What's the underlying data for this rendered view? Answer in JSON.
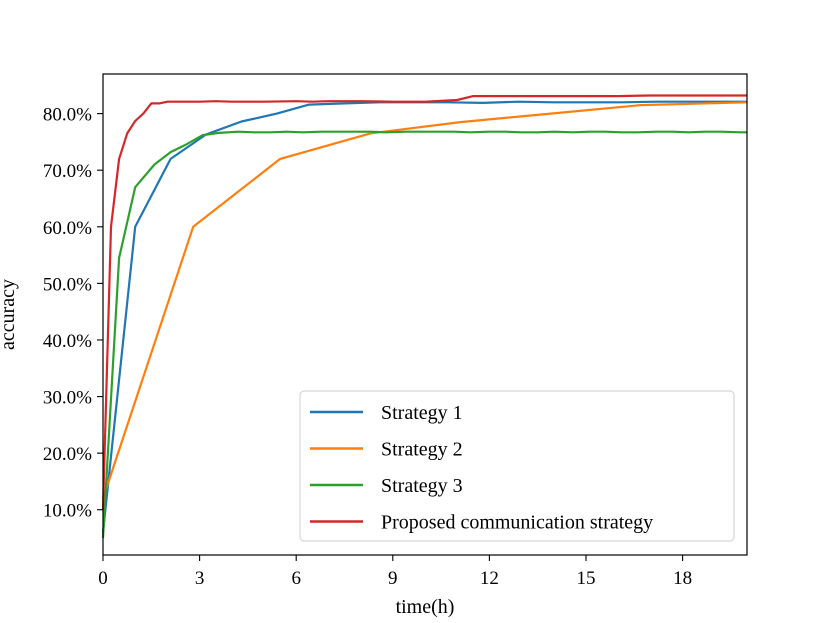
{
  "chart_data": {
    "type": "line",
    "title": "",
    "xlabel": "time(h)",
    "ylabel": "accuracy",
    "xlim": [
      0,
      20
    ],
    "ylim": [
      2,
      87
    ],
    "xticks": [
      0,
      3,
      6,
      9,
      12,
      15,
      18
    ],
    "xtick_labels": [
      "0",
      "3",
      "6",
      "9",
      "12",
      "15",
      "18"
    ],
    "yticks": [
      10,
      20,
      30,
      40,
      50,
      60,
      70,
      80
    ],
    "ytick_labels": [
      "10.0%",
      "20.0%",
      "30.0%",
      "40.0%",
      "50.0%",
      "60.0%",
      "70.0%",
      "80.0%"
    ],
    "grid": false,
    "legend_position": "lower-right",
    "series": [
      {
        "name": "Strategy 1",
        "color": "#1f77b4",
        "x": [
          0,
          1.0,
          2.1,
          3.2,
          4.3,
          5.4,
          6.4,
          7.5,
          8.6,
          9.7,
          10.7,
          11.8,
          12.9,
          14.0,
          15.1,
          16.1,
          17.2,
          18.3,
          19.4,
          20
        ],
        "y": [
          6,
          60,
          72,
          76.3,
          78.6,
          80,
          81.6,
          81.8,
          82,
          82,
          82,
          81.9,
          82.1,
          82,
          82,
          82,
          82.1,
          82.1,
          82.1,
          82.1
        ]
      },
      {
        "name": "Strategy 2",
        "color": "#ff7f0e",
        "x": [
          0,
          2.8,
          5.5,
          8.3,
          11.1,
          13.9,
          16.7,
          20
        ],
        "y": [
          12,
          60,
          72,
          76.5,
          78.5,
          80,
          81.5,
          82
        ]
      },
      {
        "name": "Strategy 3",
        "color": "#2ca02c",
        "x": [
          0,
          0.5,
          1.0,
          1.6,
          2.1,
          2.6,
          3.1,
          3.6,
          4.2,
          4.7,
          5.2,
          5.7,
          6.2,
          6.8,
          7.3,
          7.8,
          8.3,
          8.8,
          9.4,
          9.9,
          10.4,
          10.9,
          11.4,
          12.0,
          12.5,
          13.0,
          13.5,
          14.0,
          14.6,
          15.1,
          15.6,
          16.1,
          16.6,
          17.2,
          17.7,
          18.2,
          18.7,
          19.2,
          19.8,
          20
        ],
        "y": [
          5,
          54.5,
          67,
          71,
          73.2,
          74.6,
          76.2,
          76.6,
          76.8,
          76.7,
          76.7,
          76.8,
          76.7,
          76.8,
          76.8,
          76.8,
          76.8,
          76.7,
          76.8,
          76.8,
          76.8,
          76.8,
          76.7,
          76.8,
          76.8,
          76.7,
          76.7,
          76.8,
          76.7,
          76.8,
          76.8,
          76.7,
          76.7,
          76.8,
          76.8,
          76.7,
          76.8,
          76.8,
          76.7,
          76.7
        ]
      },
      {
        "name": "Proposed communication strategy",
        "color": "#d62728",
        "x": [
          0,
          0.25,
          0.5,
          0.75,
          1.0,
          1.25,
          1.5,
          1.75,
          2.0,
          2.5,
          3.0,
          3.5,
          4.0,
          5.0,
          6.0,
          6.5,
          7.0,
          8.0,
          9.0,
          10.0,
          11.0,
          11.5,
          12.0,
          13.0,
          14.0,
          15.0,
          16.0,
          17.0,
          18.0,
          19.0,
          20
        ],
        "y": [
          10,
          60,
          72,
          76.5,
          78.7,
          80,
          81.8,
          81.8,
          82.1,
          82.1,
          82.1,
          82.2,
          82.1,
          82.1,
          82.2,
          82.1,
          82.2,
          82.2,
          82.1,
          82.1,
          82.4,
          83.1,
          83.1,
          83.1,
          83.1,
          83.1,
          83.1,
          83.2,
          83.2,
          83.2,
          83.2
        ]
      }
    ]
  }
}
